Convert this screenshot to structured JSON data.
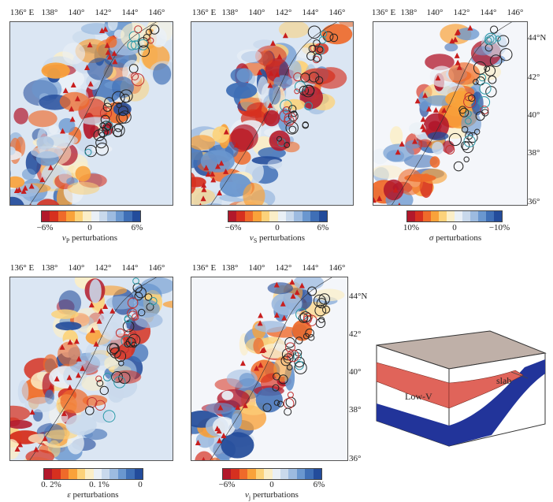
{
  "lon_ticks": [
    "136° E",
    "138°",
    "140°",
    "142°",
    "144°",
    "146°"
  ],
  "lat_ticks": [
    "44°N",
    "42°",
    "40°",
    "38°",
    "36°"
  ],
  "colors": {
    "ramp": [
      "#b2182b",
      "#d6301f",
      "#ef6a2a",
      "#f9a23a",
      "#fcd27a",
      "#fbeec7",
      "#eaf0f6",
      "#c9d9ec",
      "#9dbbe0",
      "#6a97cf",
      "#3f6fb6",
      "#234c9b"
    ],
    "volcano": "#c81e1e",
    "eq_black": "#222222",
    "eq_red": "#c23030",
    "eq_cyan": "#2a9aa8",
    "slab": "#22349a",
    "lowv": "#e0645a",
    "crust_top": "#bfb0a8"
  },
  "panels": [
    {
      "id": "vp",
      "cbar": {
        "left": "−6%",
        "mid": "0",
        "right": "6%"
      },
      "symbol": "v",
      "sub": "P",
      "suffix": " perturbations",
      "show_lat": false
    },
    {
      "id": "vs",
      "cbar": {
        "left": "−6%",
        "mid": "0",
        "right": "6%"
      },
      "symbol": "v",
      "sub": "S",
      "suffix": " perturbations",
      "show_lat": false
    },
    {
      "id": "sigma",
      "cbar": {
        "left": "10%",
        "mid": "0",
        "right": "−10%"
      },
      "symbol": "σ",
      "sub": "",
      "suffix": " perturbations",
      "show_lat": true
    },
    {
      "id": "eps",
      "cbar": {
        "left": "0. 2%",
        "mid": "0. 1%",
        "right": "0"
      },
      "symbol": "ε",
      "sub": "",
      "suffix": " perturbations",
      "show_lat": false
    },
    {
      "id": "vj",
      "cbar": {
        "left": "−6%",
        "mid": "0",
        "right": "6%"
      },
      "symbol": "v",
      "sub": "j",
      "suffix": " perturbations",
      "show_lat": true
    }
  ],
  "schematic": {
    "slab_label": "slab",
    "lowv_label": "Low-V"
  }
}
